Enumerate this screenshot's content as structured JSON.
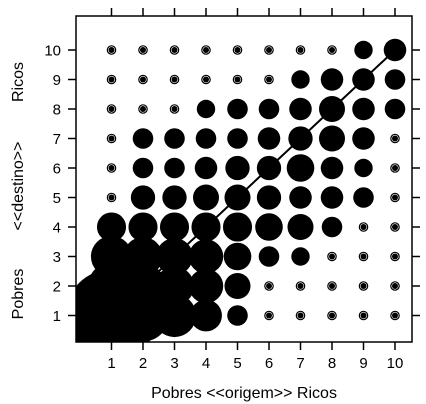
{
  "chart_data": {
    "type": "scatter",
    "title": "",
    "xlabel": "Pobres <<origem>> Ricos",
    "ylabel": "Pobres <<destino>> Ricos",
    "ylabel_parts": [
      "Pobres",
      "<<destino>>",
      "Ricos"
    ],
    "x_ticks": [
      "1",
      "2",
      "3",
      "4",
      "5",
      "6",
      "7",
      "8",
      "9",
      "10"
    ],
    "y_ticks": [
      "1",
      "2",
      "3",
      "4",
      "5",
      "6",
      "7",
      "8",
      "9",
      "10"
    ],
    "xlim": [
      0,
      11
    ],
    "ylim": [
      0,
      11
    ],
    "grid": false,
    "legend": "none",
    "diagonal": [
      [
        1,
        1
      ],
      [
        10,
        10
      ]
    ],
    "size_unit": "relative bubble size (0-1)",
    "size_matrix": [
      [
        1.0,
        0.32,
        0.22,
        0.12,
        0.05,
        0.02,
        0.02,
        0.02,
        0.01,
        0.01
      ],
      [
        0.26,
        0.24,
        0.18,
        0.14,
        0.08,
        0.03,
        0.03,
        0.02,
        0.02,
        0.01
      ],
      [
        0.2,
        0.18,
        0.16,
        0.14,
        0.09,
        0.05,
        0.04,
        0.03,
        0.02,
        0.01
      ],
      [
        0.1,
        0.1,
        0.1,
        0.1,
        0.1,
        0.09,
        0.08,
        0.05,
        0.03,
        0.02
      ],
      [
        0.03,
        0.07,
        0.07,
        0.08,
        0.08,
        0.07,
        0.06,
        0.06,
        0.05,
        0.02
      ],
      [
        0.03,
        0.05,
        0.05,
        0.06,
        0.07,
        0.07,
        0.09,
        0.06,
        0.04,
        0.02
      ],
      [
        0.02,
        0.05,
        0.05,
        0.05,
        0.05,
        0.06,
        0.07,
        0.08,
        0.06,
        0.03
      ],
      [
        0.02,
        0.02,
        0.03,
        0.04,
        0.05,
        0.05,
        0.06,
        0.08,
        0.06,
        0.05
      ],
      [
        0.02,
        0.02,
        0.02,
        0.02,
        0.03,
        0.03,
        0.04,
        0.06,
        0.06,
        0.05
      ],
      [
        0.02,
        0.02,
        0.02,
        0.02,
        0.02,
        0.02,
        0.02,
        0.03,
        0.04,
        0.06
      ]
    ]
  }
}
